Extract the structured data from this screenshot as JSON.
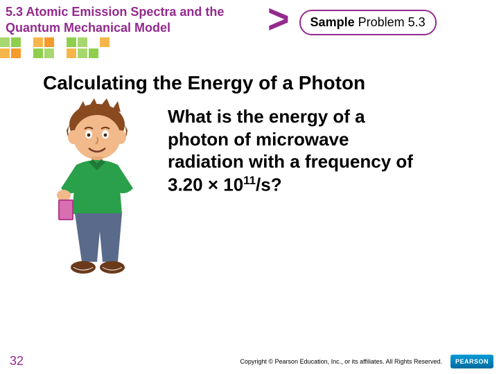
{
  "header": {
    "section_title": "5.3 Atomic Emission Spectra and the Quantum Mechanical Model",
    "sample_bold": "Sample",
    "sample_rest": " Problem 5.3"
  },
  "gridband": {
    "colors": [
      "#a7d86f",
      "#8fcf4e",
      "#ffffff",
      "#f7b64b",
      "#f59a2b",
      "#ffffff",
      "#8fcf4e",
      "#a7d86f",
      "#ffffff",
      "#f7b64b"
    ]
  },
  "heading": "Calculating the Energy of a Photon",
  "body": {
    "line1": "What is the energy of a photon of microwave radiation with a frequency of 3.20 × 10",
    "exp": "11",
    "unit": "/s?"
  },
  "avatar": {
    "skin": "#f2b98a",
    "hair": "#8a4a1f",
    "shirt": "#2aa04a",
    "pants": "#5a6a8a",
    "shoe": "#6a3a1a",
    "book": "#b33a8a"
  },
  "footer": {
    "page": "32",
    "copyright": "Copyright © Pearson Education, Inc., or its affiliates. All Rights Reserved.",
    "logo": "PEARSON"
  }
}
